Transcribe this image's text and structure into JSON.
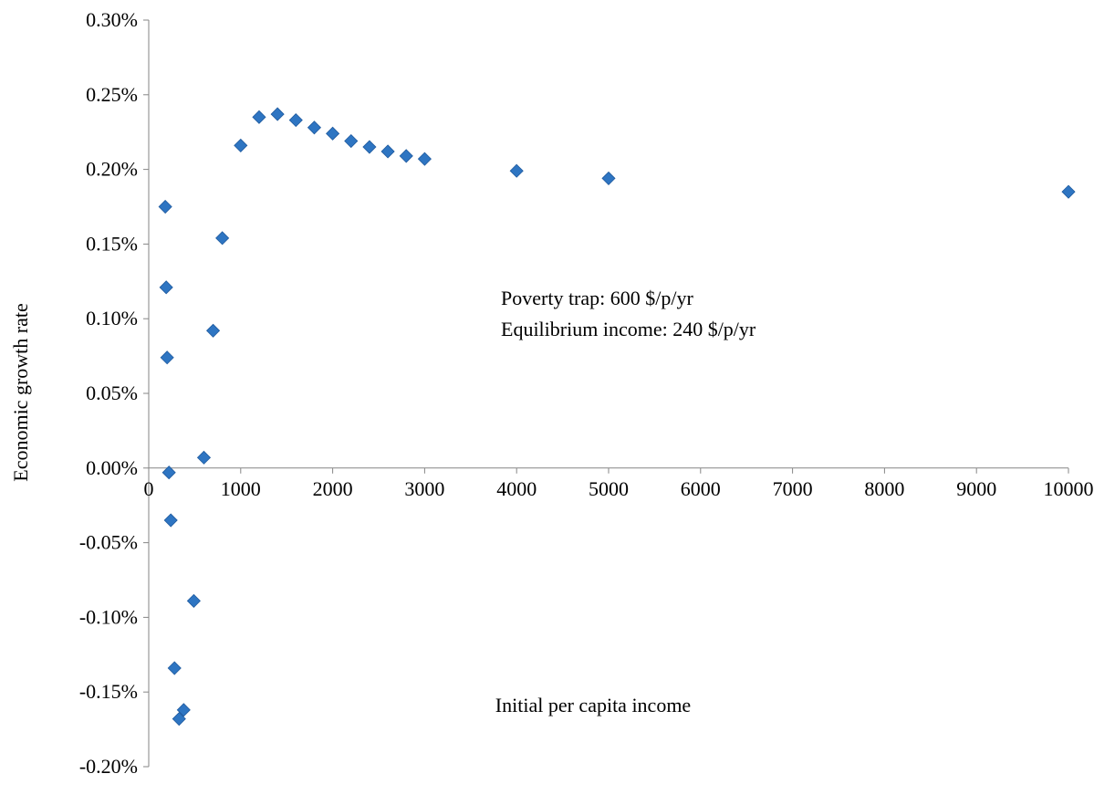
{
  "chart_data": {
    "type": "scatter",
    "title": "",
    "xlabel": "Initial per capita income",
    "ylabel": "Economic growth rate",
    "xlim": [
      0,
      10000
    ],
    "ylim": [
      -0.2,
      0.3
    ],
    "x_ticks": [
      0,
      1000,
      2000,
      3000,
      4000,
      5000,
      6000,
      7000,
      8000,
      9000,
      10000
    ],
    "x_tick_labels": [
      "0",
      "1000",
      "2000",
      "3000",
      "4000",
      "5000",
      "6000",
      "7000",
      "8000",
      "9000",
      "10000"
    ],
    "y_ticks": [
      0.3,
      0.25,
      0.2,
      0.15,
      0.1,
      0.05,
      0.0,
      -0.05,
      -0.1,
      -0.15,
      -0.2
    ],
    "y_tick_labels": [
      "0.30%",
      "0.25%",
      "0.20%",
      "0.15%",
      "0.10%",
      "0.05%",
      "0.00%",
      "-0.05%",
      "-0.10%",
      "-0.15%",
      "-0.20%"
    ],
    "y_unit": "%",
    "grid": false,
    "marker": "diamond",
    "colors": {
      "marker": "#2E75C2",
      "marker_edge": "#1F5A9E",
      "axis": "#868686"
    },
    "annotations": [
      "Poverty trap: 600 $/p/yr",
      "Equilibrium income: 240 $/p/yr"
    ],
    "series": [
      {
        "points": [
          {
            "x": 180,
            "y": 0.175
          },
          {
            "x": 190,
            "y": 0.121
          },
          {
            "x": 200,
            "y": 0.074
          },
          {
            "x": 220,
            "y": -0.003
          },
          {
            "x": 240,
            "y": -0.035
          },
          {
            "x": 280,
            "y": -0.134
          },
          {
            "x": 330,
            "y": -0.168
          },
          {
            "x": 380,
            "y": -0.162
          },
          {
            "x": 490,
            "y": -0.089
          },
          {
            "x": 600,
            "y": 0.007
          },
          {
            "x": 700,
            "y": 0.092
          },
          {
            "x": 800,
            "y": 0.154
          },
          {
            "x": 1000,
            "y": 0.216
          },
          {
            "x": 1200,
            "y": 0.235
          },
          {
            "x": 1400,
            "y": 0.237
          },
          {
            "x": 1600,
            "y": 0.233
          },
          {
            "x": 1800,
            "y": 0.228
          },
          {
            "x": 2000,
            "y": 0.224
          },
          {
            "x": 2200,
            "y": 0.219
          },
          {
            "x": 2400,
            "y": 0.215
          },
          {
            "x": 2600,
            "y": 0.212
          },
          {
            "x": 2800,
            "y": 0.209
          },
          {
            "x": 3000,
            "y": 0.207
          },
          {
            "x": 4000,
            "y": 0.199
          },
          {
            "x": 5000,
            "y": 0.194
          },
          {
            "x": 10000,
            "y": 0.185
          }
        ]
      }
    ]
  }
}
